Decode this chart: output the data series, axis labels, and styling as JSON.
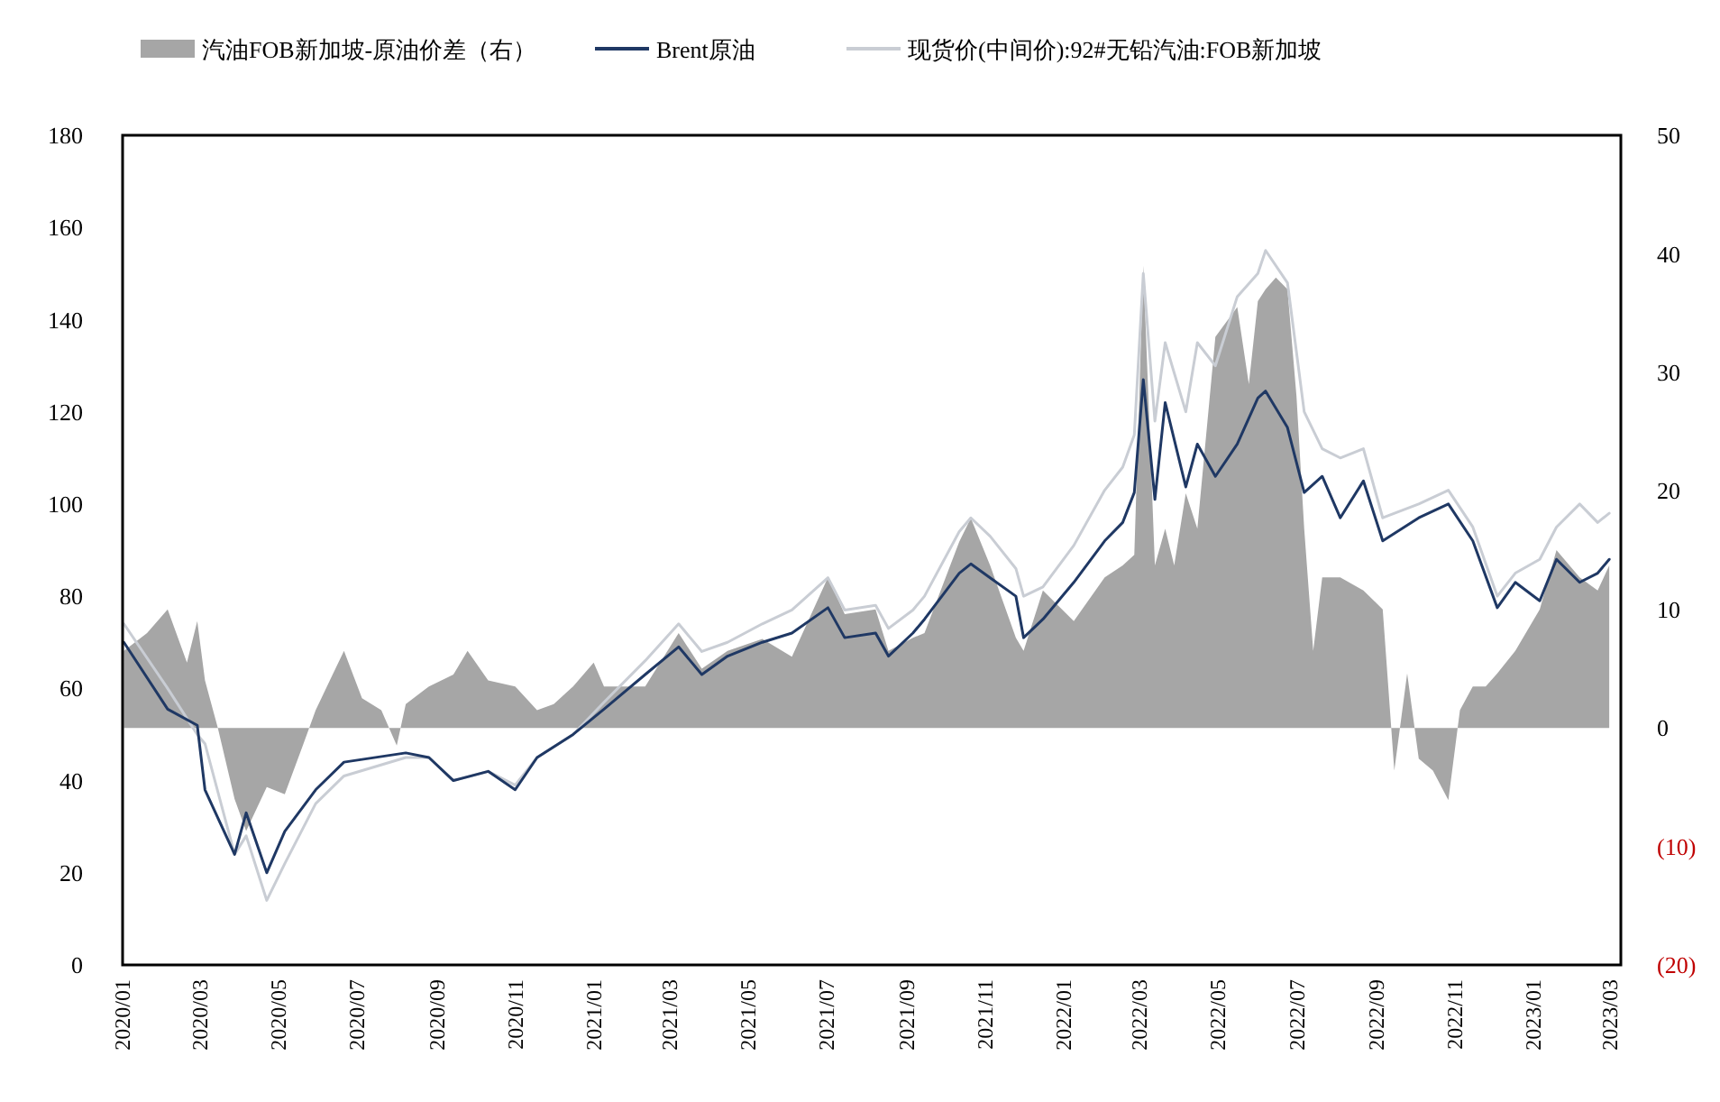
{
  "chart_data": {
    "type": "line",
    "legend": "top",
    "xlim": [
      "2020-01-01",
      "2023-03-10"
    ],
    "xticks": [
      {
        "value": "2020-01",
        "label": "2020/01"
      },
      {
        "value": "2020-03",
        "label": "2020/03"
      },
      {
        "value": "2020-05",
        "label": "2020/05"
      },
      {
        "value": "2020-07",
        "label": "2020/07"
      },
      {
        "value": "2020-09",
        "label": "2020/09"
      },
      {
        "value": "2020-11",
        "label": "2020/11"
      },
      {
        "value": "2021-01",
        "label": "2021/01"
      },
      {
        "value": "2021-03",
        "label": "2021/03"
      },
      {
        "value": "2021-05",
        "label": "2021/05"
      },
      {
        "value": "2021-07",
        "label": "2021/07"
      },
      {
        "value": "2021-09",
        "label": "2021/09"
      },
      {
        "value": "2021-11",
        "label": "2021/11"
      },
      {
        "value": "2022-01",
        "label": "2022/01"
      },
      {
        "value": "2022-03",
        "label": "2022/03"
      },
      {
        "value": "2022-05",
        "label": "2022/05"
      },
      {
        "value": "2022-07",
        "label": "2022/07"
      },
      {
        "value": "2022-09",
        "label": "2022/09"
      },
      {
        "value": "2022-11",
        "label": "2022/11"
      },
      {
        "value": "2023-01",
        "label": "2023/01"
      },
      {
        "value": "2023-03",
        "label": "2023/03"
      }
    ],
    "ylim": [
      0,
      180
    ],
    "yticks": [
      0,
      20,
      40,
      60,
      80,
      100,
      120,
      140,
      160,
      180
    ],
    "y2lim": [
      -20,
      50
    ],
    "y2ticks": [
      {
        "value": -20,
        "label": "(20)"
      },
      {
        "value": -10,
        "label": "(10)"
      },
      0,
      10,
      20,
      30,
      40,
      50
    ],
    "series": [
      {
        "name": "汽油FOB新加坡-原油价差（右）",
        "type": "area",
        "axis": "y2",
        "color": "#a6a6a6",
        "x": [
          "2020-01-02",
          "2020-01-20",
          "2020-02-05",
          "2020-02-20",
          "2020-02-28",
          "2020-03-05",
          "2020-03-15",
          "2020-03-28",
          "2020-04-06",
          "2020-04-22",
          "2020-05-06",
          "2020-05-20",
          "2020-05-30",
          "2020-06-10",
          "2020-06-21",
          "2020-07-05",
          "2020-07-20",
          "2020-08-01",
          "2020-08-08",
          "2020-08-26",
          "2020-09-14",
          "2020-09-25",
          "2020-10-11",
          "2020-11-01",
          "2020-11-18",
          "2020-12-01",
          "2020-12-16",
          "2021-01-01",
          "2021-01-09",
          "2021-02-10",
          "2021-03-08",
          "2021-03-26",
          "2021-04-15",
          "2021-05-12",
          "2021-06-04",
          "2021-07-02",
          "2021-07-15",
          "2021-08-08",
          "2021-08-18",
          "2021-09-06",
          "2021-09-15",
          "2021-10-12",
          "2021-10-21",
          "2021-11-05",
          "2021-11-25",
          "2021-12-01",
          "2021-12-16",
          "2022-01-09",
          "2022-02-02",
          "2022-02-16",
          "2022-02-25",
          "2022-03-04",
          "2022-03-13",
          "2022-03-21",
          "2022-03-28",
          "2022-04-06",
          "2022-04-15",
          "2022-04-29",
          "2022-05-16",
          "2022-05-25",
          "2022-06-01",
          "2022-06-07",
          "2022-06-15",
          "2022-06-24",
          "2022-07-01",
          "2022-07-07",
          "2022-07-14",
          "2022-07-21",
          "2022-08-04",
          "2022-08-22",
          "2022-09-06",
          "2022-09-15",
          "2022-09-25",
          "2022-10-04",
          "2022-10-15",
          "2022-10-27",
          "2022-11-05",
          "2022-11-15",
          "2022-11-25",
          "2022-12-04",
          "2022-12-18",
          "2023-01-06",
          "2023-01-19",
          "2023-02-06",
          "2023-02-20",
          "2023-03-01"
        ],
        "values": [
          6.5,
          8,
          10,
          5.5,
          9,
          4,
          0,
          -6,
          -8.7,
          -5,
          -5.6,
          -1.5,
          1.5,
          4,
          6.5,
          2.5,
          1.5,
          -1.5,
          2,
          3.5,
          4.5,
          6.5,
          4,
          3.5,
          1.5,
          2,
          3.5,
          5.5,
          3.5,
          3.5,
          8,
          5,
          6.5,
          7.5,
          6,
          12.7,
          9.6,
          10,
          6.5,
          7.6,
          8,
          15.7,
          17.7,
          13.7,
          7.6,
          6.5,
          11.6,
          9,
          12.7,
          13.7,
          14.6,
          39,
          13.7,
          16.8,
          13.7,
          19.8,
          16.8,
          33,
          35.5,
          29,
          36,
          37,
          38,
          37,
          28,
          16.8,
          6.5,
          12.7,
          12.7,
          11.6,
          10,
          -3.6,
          4.6,
          -2.6,
          -3.6,
          -6.1,
          1.5,
          3.5,
          3.5,
          4.6,
          6.5,
          10,
          15,
          12.7,
          11.6,
          13.7
        ]
      },
      {
        "name": "Brent原油",
        "color": "#1f3864",
        "x": [
          "2020-01-02",
          "2020-02-05",
          "2020-02-28",
          "2020-03-05",
          "2020-03-28",
          "2020-04-06",
          "2020-04-22",
          "2020-05-06",
          "2020-05-30",
          "2020-06-21",
          "2020-08-08",
          "2020-08-26",
          "2020-09-14",
          "2020-10-11",
          "2020-11-01",
          "2020-11-18",
          "2020-12-16",
          "2021-01-09",
          "2021-02-10",
          "2021-03-08",
          "2021-03-26",
          "2021-04-15",
          "2021-05-12",
          "2021-06-04",
          "2021-07-02",
          "2021-07-15",
          "2021-08-08",
          "2021-08-18",
          "2021-09-06",
          "2021-09-15",
          "2021-10-12",
          "2021-10-21",
          "2021-11-05",
          "2021-11-25",
          "2021-12-01",
          "2021-12-16",
          "2022-01-09",
          "2022-02-02",
          "2022-02-16",
          "2022-02-25",
          "2022-03-04",
          "2022-03-13",
          "2022-03-21",
          "2022-04-06",
          "2022-04-15",
          "2022-04-29",
          "2022-05-16",
          "2022-06-01",
          "2022-06-07",
          "2022-06-24",
          "2022-07-07",
          "2022-07-21",
          "2022-08-04",
          "2022-08-22",
          "2022-09-06",
          "2022-10-04",
          "2022-10-27",
          "2022-11-15",
          "2022-12-04",
          "2022-12-18",
          "2023-01-06",
          "2023-01-19",
          "2023-02-06",
          "2023-02-20",
          "2023-03-01"
        ],
        "values": [
          70,
          55.5,
          52,
          38,
          24,
          33,
          20,
          29,
          38,
          44,
          46,
          45,
          40,
          42,
          38,
          45,
          50,
          55.5,
          63,
          69,
          63,
          67,
          70,
          72,
          77.5,
          71,
          72,
          67,
          72,
          75,
          85,
          87,
          84,
          80,
          71,
          75,
          83,
          92,
          96,
          102.5,
          127,
          101,
          122,
          103.7,
          113,
          106,
          113,
          123,
          124.5,
          116.6,
          102.5,
          106,
          97,
          105,
          92,
          97,
          100,
          92,
          77.5,
          83,
          79,
          88,
          83,
          85,
          88
        ]
      },
      {
        "name": "现货价(中间价):92#无铅汽油:FOB新加坡",
        "color": "#c9cdd4",
        "x": [
          "2020-01-02",
          "2020-02-05",
          "2020-02-28",
          "2020-03-05",
          "2020-03-28",
          "2020-04-06",
          "2020-04-22",
          "2020-05-06",
          "2020-05-30",
          "2020-06-21",
          "2020-08-08",
          "2020-08-26",
          "2020-09-14",
          "2020-10-11",
          "2020-11-01",
          "2020-11-18",
          "2020-12-16",
          "2021-01-09",
          "2021-02-10",
          "2021-03-08",
          "2021-03-26",
          "2021-04-15",
          "2021-05-12",
          "2021-06-04",
          "2021-07-02",
          "2021-07-15",
          "2021-08-08",
          "2021-08-18",
          "2021-09-06",
          "2021-09-15",
          "2021-10-12",
          "2021-10-21",
          "2021-11-05",
          "2021-11-25",
          "2021-12-01",
          "2021-12-16",
          "2022-01-09",
          "2022-02-02",
          "2022-02-16",
          "2022-02-25",
          "2022-03-04",
          "2022-03-13",
          "2022-03-21",
          "2022-04-06",
          "2022-04-15",
          "2022-04-29",
          "2022-05-16",
          "2022-06-01",
          "2022-06-07",
          "2022-06-24",
          "2022-07-07",
          "2022-07-21",
          "2022-08-04",
          "2022-08-22",
          "2022-09-06",
          "2022-10-04",
          "2022-10-27",
          "2022-11-15",
          "2022-12-04",
          "2022-12-18",
          "2023-01-06",
          "2023-01-19",
          "2023-02-06",
          "2023-02-20",
          "2023-03-01"
        ],
        "values": [
          74,
          60,
          50,
          48,
          24,
          28,
          14,
          22,
          35,
          41,
          45,
          45,
          40,
          42,
          39,
          45,
          50,
          57,
          66,
          74,
          68,
          70,
          74,
          77,
          84,
          77,
          78,
          73,
          77,
          80,
          94,
          97,
          93,
          86,
          80,
          82,
          91,
          103,
          108,
          115,
          150,
          118,
          135,
          120,
          135,
          130,
          145,
          150,
          155,
          148,
          120,
          112,
          110,
          112,
          97,
          100,
          103,
          95,
          80,
          85,
          88,
          95,
          100,
          96,
          98
        ]
      }
    ]
  }
}
